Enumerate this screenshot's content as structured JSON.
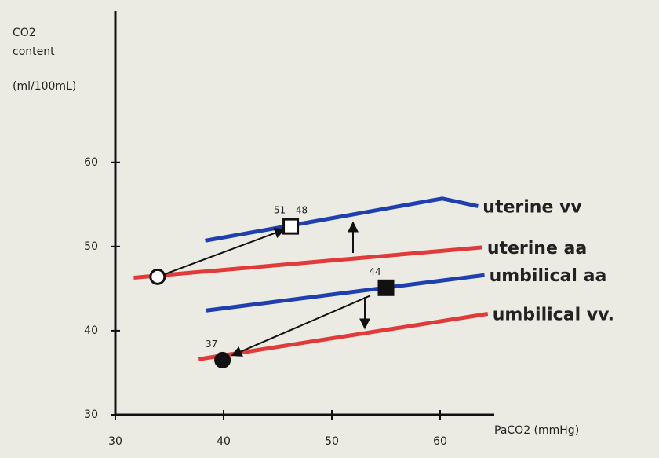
{
  "chart_data": {
    "type": "line",
    "y_label_lines": [
      "CO2",
      "content",
      "(ml/100mL)"
    ],
    "x_label": "PaCO2 (mmHg)",
    "xlim": [
      30,
      65
    ],
    "ylim": [
      30,
      78
    ],
    "xticks": [
      30,
      40,
      50,
      60
    ],
    "yticks": [
      30,
      40,
      50,
      60
    ],
    "series": [
      {
        "name": "uterine vv",
        "color": "#1f3fb0",
        "x": [
          38.3,
          60.2,
          63.5
        ],
        "values": [
          50.7,
          55.7,
          54.8
        ]
      },
      {
        "name": "uterine aa",
        "color": "#e03a3a",
        "x": [
          31.7,
          63.9
        ],
        "values": [
          46.3,
          49.9
        ]
      },
      {
        "name": "umbilical aa",
        "color": "#1f3fb0",
        "x": [
          38.4,
          64.1
        ],
        "values": [
          42.4,
          46.6
        ]
      },
      {
        "name": "umbilical vv.",
        "color": "#e03a3a",
        "x": [
          37.7,
          64.4
        ],
        "values": [
          36.6,
          42.0
        ]
      }
    ],
    "points": [
      {
        "x": 33.9,
        "y": 46.4,
        "shape": "open-circle",
        "labels": []
      },
      {
        "x": 46.2,
        "y": 52.4,
        "shape": "open-square",
        "labels": [
          "51",
          "48"
        ]
      },
      {
        "x": 55.0,
        "y": 45.1,
        "shape": "filled-square",
        "labels": [
          "44"
        ]
      },
      {
        "x": 39.9,
        "y": 36.5,
        "shape": "filled-circle",
        "labels": [
          "37"
        ]
      }
    ]
  }
}
